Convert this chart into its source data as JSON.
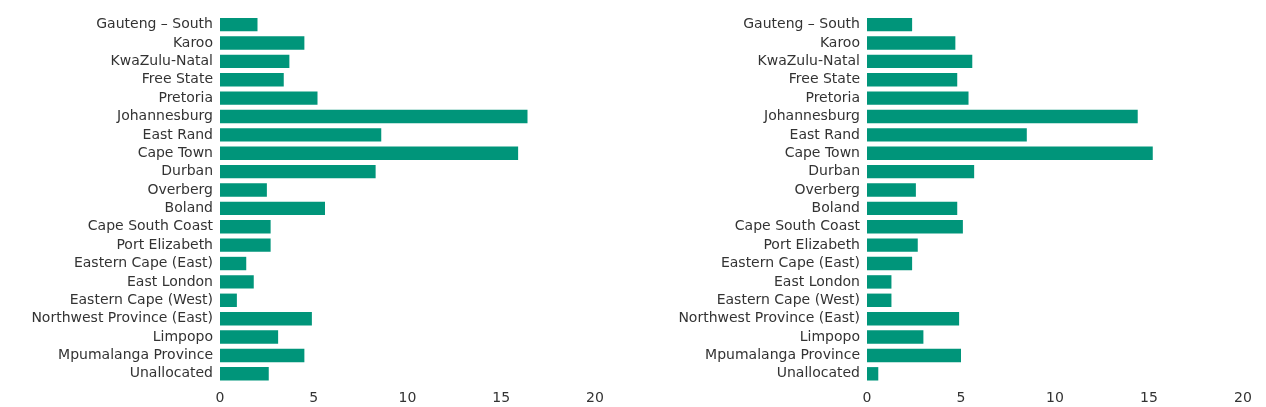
{
  "chart_data": [
    {
      "type": "bar",
      "orientation": "horizontal",
      "categories": [
        "Gauteng – South",
        "Karoo",
        "KwaZulu-Natal",
        "Free State",
        "Pretoria",
        "Johannesburg",
        "East Rand",
        "Cape Town",
        "Durban",
        "Overberg",
        "Boland",
        "Cape South Coast",
        "Port Elizabeth",
        "Eastern Cape (East)",
        "East London",
        "Eastern Cape (West)",
        "Northwest Province (East)",
        "Limpopo",
        "Mpumalanga Province",
        "Unallocated"
      ],
      "values": [
        2.0,
        4.5,
        3.7,
        3.4,
        5.2,
        16.4,
        8.6,
        15.9,
        8.3,
        2.5,
        5.6,
        2.7,
        2.7,
        1.4,
        1.8,
        0.9,
        4.9,
        3.1,
        4.5,
        2.6
      ],
      "color": "#00957a",
      "xlim": [
        0,
        20
      ],
      "xticks": [
        0,
        5,
        10,
        15,
        20
      ]
    },
    {
      "type": "bar",
      "orientation": "horizontal",
      "categories": [
        "Gauteng – South",
        "Karoo",
        "KwaZulu-Natal",
        "Free State",
        "Pretoria",
        "Johannesburg",
        "East Rand",
        "Cape Town",
        "Durban",
        "Overberg",
        "Boland",
        "Cape South Coast",
        "Port Elizabeth",
        "Eastern Cape (East)",
        "East London",
        "Eastern Cape (West)",
        "Northwest Province (East)",
        "Limpopo",
        "Mpumalanga Province",
        "Unallocated"
      ],
      "values": [
        2.4,
        4.7,
        5.6,
        4.8,
        5.4,
        14.4,
        8.5,
        15.2,
        5.7,
        2.6,
        4.8,
        5.1,
        2.7,
        2.4,
        1.3,
        1.3,
        4.9,
        3.0,
        5.0,
        0.6
      ],
      "color": "#00957a",
      "xlim": [
        0,
        20
      ],
      "xticks": [
        0,
        5,
        10,
        15,
        20
      ]
    }
  ]
}
